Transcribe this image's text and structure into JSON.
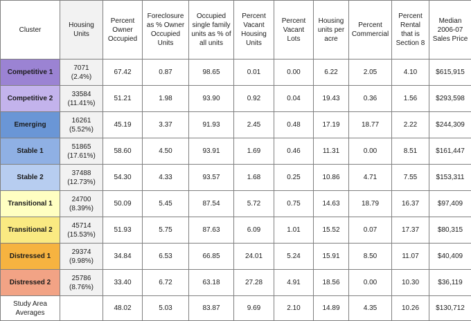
{
  "headers": [
    "Cluster",
    "Housing Units",
    "Percent Owner Occupied",
    "Foreclosure as % Owner Occupied Units",
    "Occupied single family units as % of all units",
    "Percent Vacant Housing Units",
    "Percent Vacant Lots",
    "Housing units per acre",
    "Percent Commercial",
    "Percent Rental that is Section 8",
    "Median 2006-07 Sales Price"
  ],
  "rows": [
    {
      "cluster": "Competitive 1",
      "color": "#9b83d3",
      "units": "7071",
      "units_pct": "(2.4%)",
      "values": [
        "67.42",
        "0.87",
        "98.65",
        "0.01",
        "0.00",
        "6.22",
        "2.05",
        "4.10",
        "$615,915"
      ]
    },
    {
      "cluster": "Competitive 2",
      "color": "#c3b3ec",
      "units": "33584",
      "units_pct": "(11.41%)",
      "values": [
        "51.21",
        "1.98",
        "93.90",
        "0.92",
        "0.04",
        "19.43",
        "0.36",
        "1.56",
        "$293,598"
      ]
    },
    {
      "cluster": "Emerging",
      "color": "#6a96d6",
      "units": "16261",
      "units_pct": "(5.52%)",
      "values": [
        "45.19",
        "3.37",
        "91.93",
        "2.45",
        "0.48",
        "17.19",
        "18.77",
        "2.22",
        "$244,309"
      ]
    },
    {
      "cluster": "Stable 1",
      "color": "#8fb0e4",
      "units": "51865",
      "units_pct": "(17.61%)",
      "values": [
        "58.60",
        "4.50",
        "93.91",
        "1.69",
        "0.46",
        "11.31",
        "0.00",
        "8.51",
        "$161,447"
      ]
    },
    {
      "cluster": "Stable 2",
      "color": "#b7cdf0",
      "units": "37488",
      "units_pct": "(12.73%)",
      "values": [
        "54.30",
        "4.33",
        "93.57",
        "1.68",
        "0.25",
        "10.86",
        "4.71",
        "7.55",
        "$153,311"
      ]
    },
    {
      "cluster": "Transitional 1",
      "color": "#ffffc2",
      "units": "24700",
      "units_pct": "(8.39%)",
      "values": [
        "50.09",
        "5.45",
        "87.54",
        "5.72",
        "0.75",
        "14.63",
        "18.79",
        "16.37",
        "$97,409"
      ]
    },
    {
      "cluster": "Transitional 2",
      "color": "#faea82",
      "units": "45714",
      "units_pct": "(15.53%)",
      "values": [
        "51.93",
        "5.75",
        "87.63",
        "6.09",
        "1.01",
        "15.52",
        "0.07",
        "17.37",
        "$80,315"
      ]
    },
    {
      "cluster": "Distressed 1",
      "color": "#f6b340",
      "units": "29374",
      "units_pct": "(9.98%)",
      "values": [
        "34.84",
        "6.53",
        "66.85",
        "24.01",
        "5.24",
        "15.91",
        "8.50",
        "11.07",
        "$40,409"
      ]
    },
    {
      "cluster": "Distressed 2",
      "color": "#f2a385",
      "units": "25786",
      "units_pct": "(8.76%)",
      "values": [
        "33.40",
        "6.72",
        "63.18",
        "27.28",
        "4.91",
        "18.56",
        "0.00",
        "10.30",
        "$36,119"
      ]
    }
  ],
  "averages": {
    "label_line1": "Study Area",
    "label_line2": "Averages",
    "values": [
      "48.02",
      "5.03",
      "83.87",
      "9.69",
      "2.10",
      "14.89",
      "4.35",
      "10.26",
      "$130,712"
    ]
  }
}
